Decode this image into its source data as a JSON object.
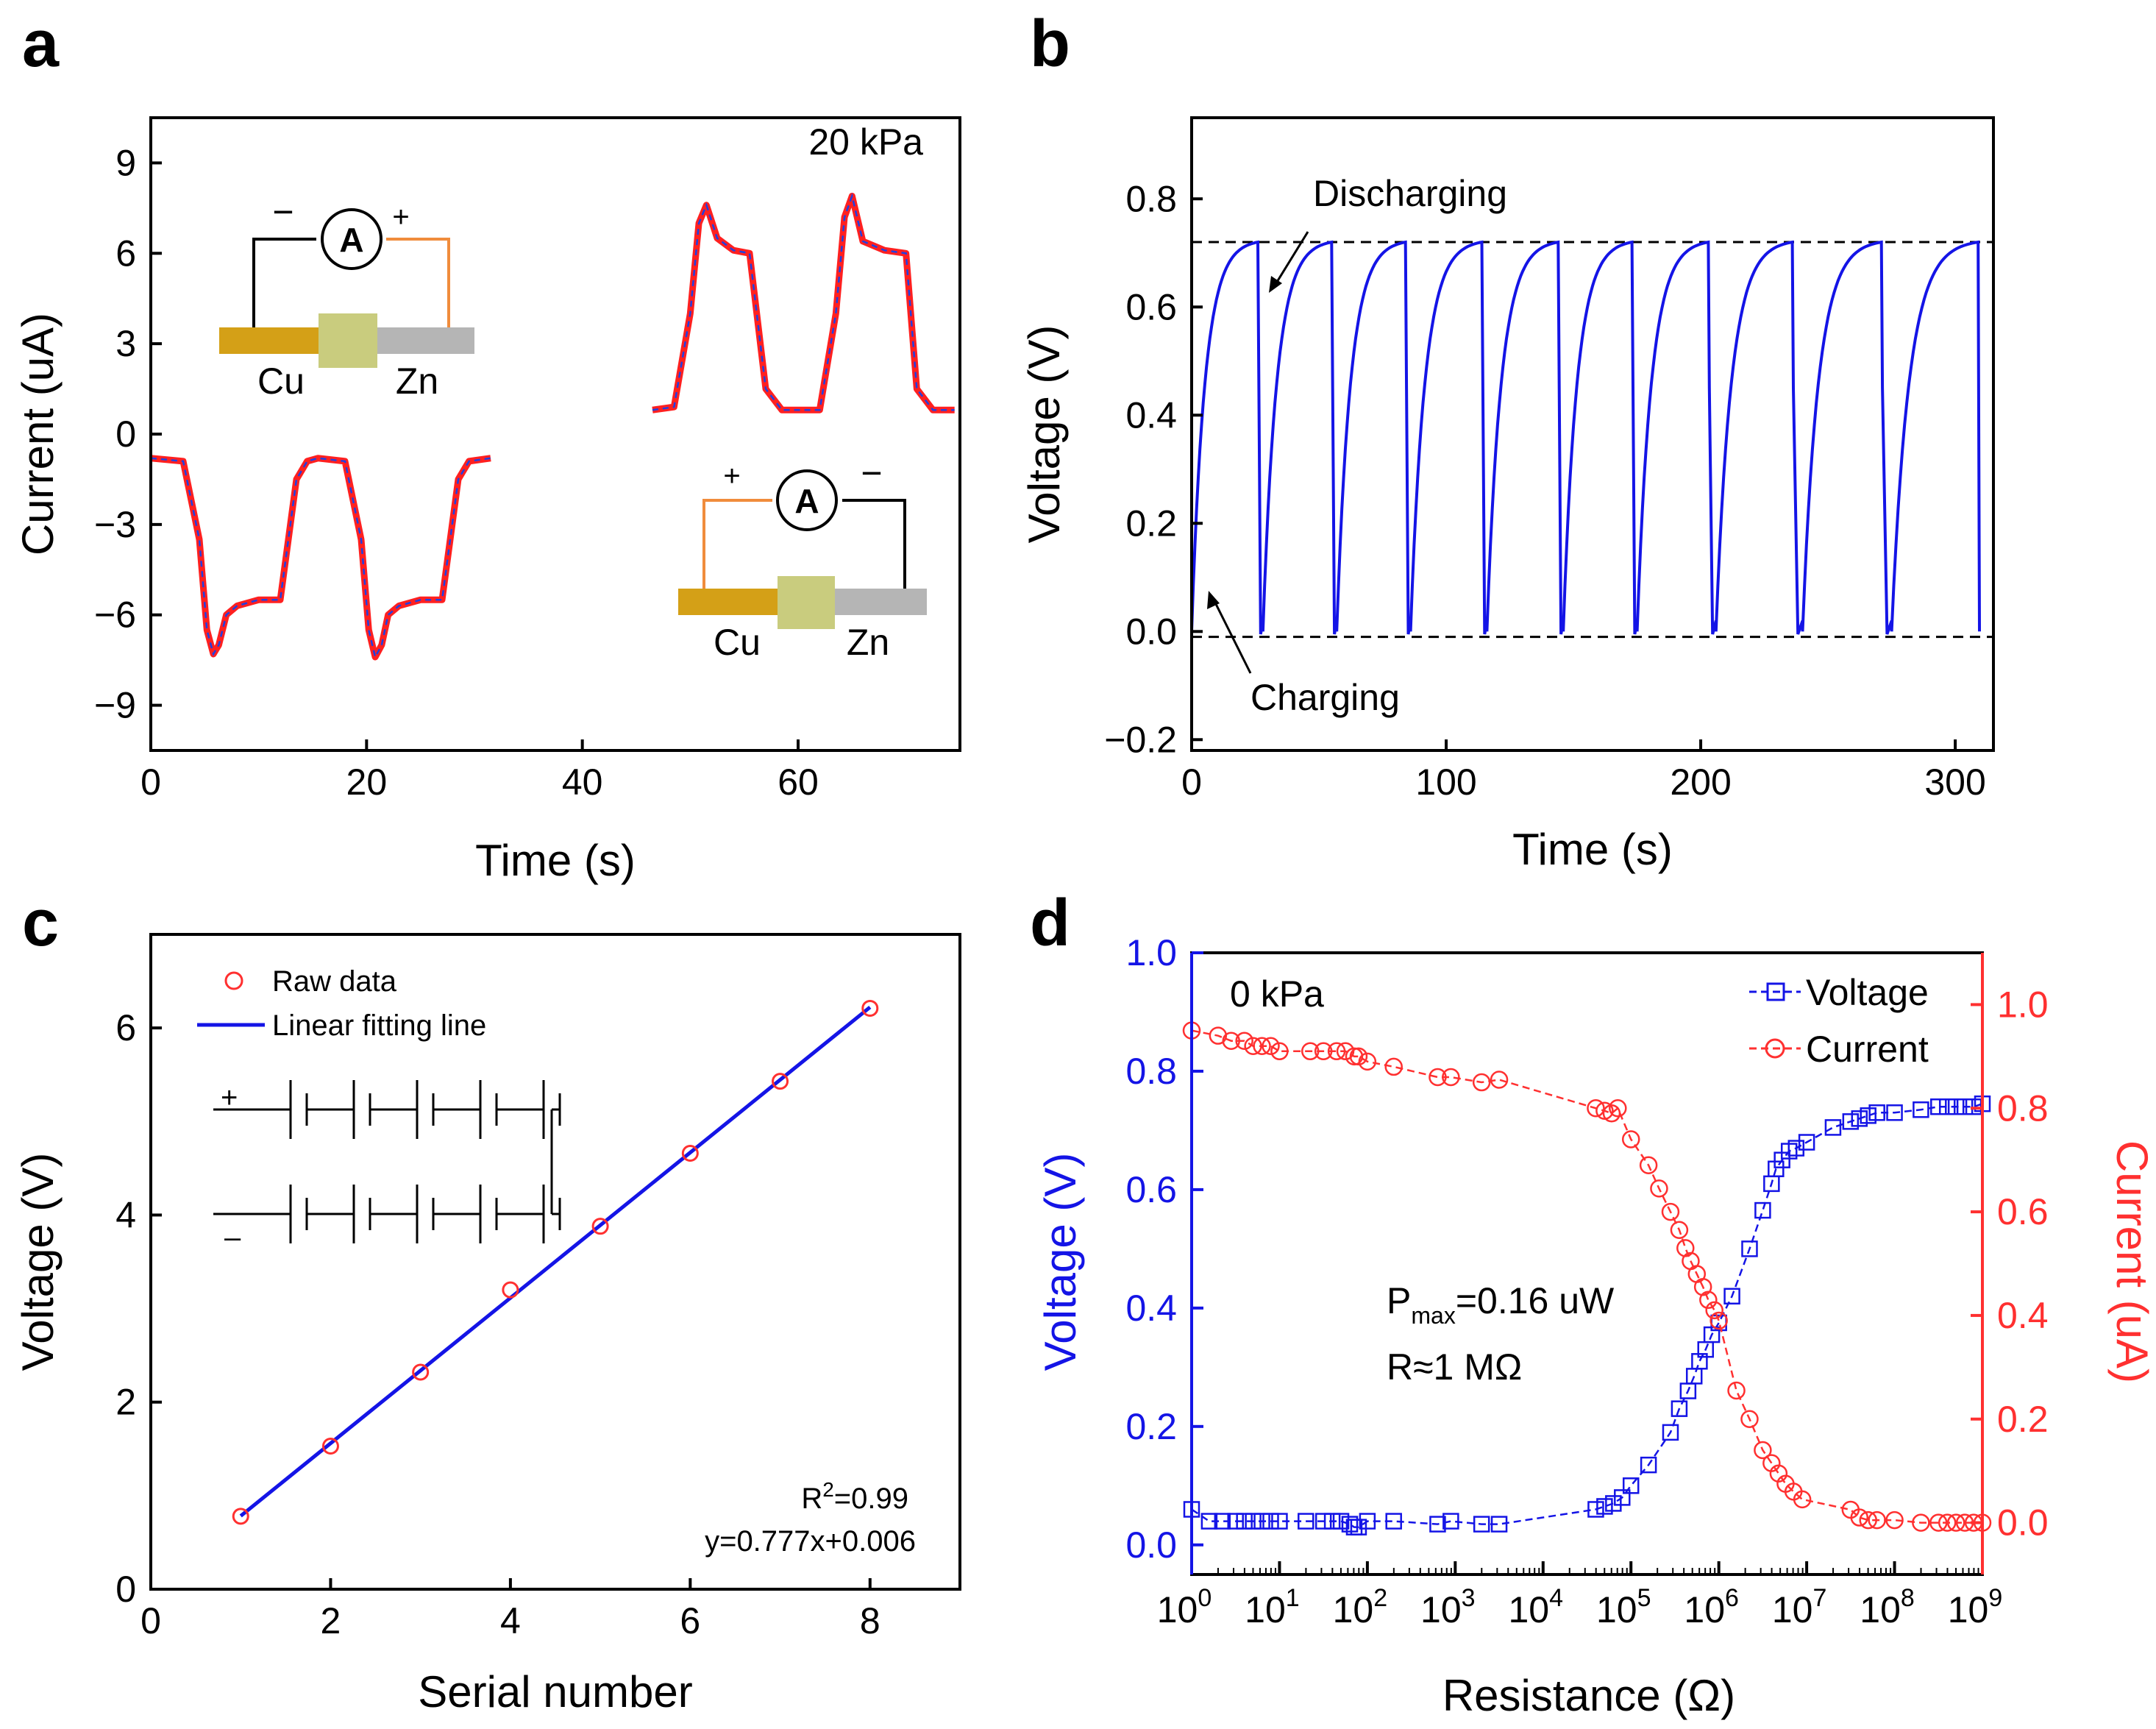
{
  "chart_data": [
    {
      "panel": "a",
      "type": "line",
      "title": "",
      "xlabel": "Time (s)",
      "ylabel": "Current (uA)",
      "xlim": [
        0,
        75
      ],
      "ylim": [
        -10.5,
        10.5
      ],
      "xticks": [
        0,
        20,
        40,
        60
      ],
      "yticks": [
        -9,
        -6,
        -3,
        0,
        3,
        6,
        9
      ],
      "ytick_labels": [
        "−9",
        "−6",
        "−3",
        "0",
        "3",
        "6",
        "9"
      ],
      "annotation": "20 kPa",
      "series": [
        {
          "name": "negative pulses",
          "color": "#ff2020",
          "x": [
            0,
            3,
            4.5,
            5.2,
            5.8,
            6.3,
            7,
            8,
            10,
            12,
            13.5,
            14.5,
            15.5,
            18,
            19.5,
            20.2,
            20.8,
            21.4,
            22,
            23,
            25,
            27,
            28.5,
            29.5,
            31.5
          ],
          "y": [
            -0.8,
            -0.9,
            -3.5,
            -6.5,
            -7.3,
            -7.0,
            -6.0,
            -5.7,
            -5.5,
            -5.5,
            -1.5,
            -0.9,
            -0.8,
            -0.9,
            -3.5,
            -6.5,
            -7.4,
            -7.0,
            -6.0,
            -5.7,
            -5.5,
            -5.5,
            -1.5,
            -0.9,
            -0.8
          ]
        },
        {
          "name": "positive pulses",
          "color": "#ff2020",
          "x": [
            46.5,
            48.5,
            50,
            50.8,
            51.5,
            52.5,
            54,
            55.5,
            57,
            58.5,
            62,
            63.5,
            64.3,
            65,
            66,
            68,
            70,
            71,
            72.5,
            74.5
          ],
          "y": [
            0.8,
            0.9,
            4.0,
            7.0,
            7.6,
            6.5,
            6.1,
            6.0,
            1.5,
            0.8,
            0.8,
            4.0,
            7.2,
            7.9,
            6.4,
            6.1,
            6.0,
            1.5,
            0.8,
            0.8
          ]
        }
      ],
      "inset_top": {
        "minus": "−",
        "plus": "+",
        "meter": "A",
        "left_metal": "Cu",
        "right_metal": "Zn"
      },
      "inset_bottom": {
        "plus": "+",
        "minus": "−",
        "meter": "A",
        "left_metal": "Cu",
        "right_metal": "Zn"
      }
    },
    {
      "panel": "b",
      "type": "line",
      "title": "",
      "xlabel": "Time (s)",
      "ylabel": "Voltage (V)",
      "xlim": [
        0,
        315
      ],
      "ylim": [
        -0.22,
        0.95
      ],
      "xticks": [
        0,
        100,
        200,
        300
      ],
      "yticks": [
        -0.2,
        0.0,
        0.2,
        0.4,
        0.6,
        0.8
      ],
      "ytick_labels": [
        "−0.2",
        "0.0",
        "0.2",
        "0.4",
        "0.6",
        "0.8"
      ],
      "reference_lines": [
        0.72,
        -0.01
      ],
      "cycle_starts": [
        0,
        28,
        57,
        86,
        116,
        146,
        175,
        206,
        240,
        275
      ],
      "cycle_ends": [
        26,
        55,
        84,
        114,
        144,
        173,
        203,
        236,
        271,
        309
      ],
      "plateau": 0.72,
      "annotations": [
        "Discharging",
        "Charging"
      ]
    },
    {
      "panel": "c",
      "type": "scatter",
      "title": "",
      "xlabel": "Serial number",
      "ylabel": "Voltage (V)",
      "xlim": [
        0,
        9
      ],
      "ylim": [
        0,
        7
      ],
      "xticks": [
        0,
        2,
        4,
        6,
        8
      ],
      "yticks": [
        0,
        2,
        4,
        6
      ],
      "x": [
        1,
        2,
        3,
        4,
        5,
        6,
        7,
        8
      ],
      "y": [
        0.78,
        1.53,
        2.32,
        3.2,
        3.88,
        4.66,
        5.43,
        6.21
      ],
      "fit": {
        "slope": 0.777,
        "intercept": 0.006
      },
      "legend": [
        "Raw data",
        "Linear fitting line"
      ],
      "r2_label": "R",
      "r2_sup": "2",
      "r2_value": "=0.99",
      "equation": "y=0.777x+0.006",
      "inset_plus": "+",
      "inset_minus": "–"
    },
    {
      "panel": "d",
      "type": "scatter",
      "title": "",
      "xlabel": "Resistance (Ω)",
      "ylabel": "Voltage (V)",
      "ylabel_right": "Current (uA)",
      "xscale": "log",
      "xlim_exp": [
        0,
        9
      ],
      "ylim": [
        -0.05,
        1.0
      ],
      "ylim_right": [
        -0.1,
        1.1
      ],
      "yticks": [
        0.0,
        0.2,
        0.4,
        0.6,
        0.8,
        1.0
      ],
      "yticks_right": [
        0.0,
        0.2,
        0.4,
        0.6,
        0.8,
        1.0
      ],
      "xtick_base": "10",
      "xtick_exps": [
        "0",
        "1",
        "2",
        "3",
        "4",
        "5",
        "6",
        "7",
        "8",
        "9"
      ],
      "annotation": "0 kPa",
      "pmax_label": "P",
      "pmax_sub": "max",
      "pmax_value": "=0.16 uW",
      "r_label": "R≈1 MΩ",
      "series": [
        {
          "name": "Voltage",
          "color": "#1414e6",
          "log_x": [
            0,
            0.2,
            0.35,
            0.5,
            0.6,
            0.7,
            0.8,
            0.9,
            1.0,
            1.3,
            1.5,
            1.6,
            1.7,
            1.8,
            1.85,
            1.9,
            2.0,
            2.3,
            2.8,
            2.95,
            3.3,
            3.5,
            4.6,
            4.7,
            4.8,
            4.9,
            5.0,
            5.2,
            5.45,
            5.55,
            5.65,
            5.72,
            5.78,
            5.85,
            5.92,
            6.0,
            6.15,
            6.35,
            6.5,
            6.6,
            6.65,
            6.72,
            6.8,
            6.88,
            7.0,
            7.3,
            7.5,
            7.6,
            7.7,
            7.8,
            8.0,
            8.3,
            8.5,
            8.6,
            8.7,
            8.8,
            8.9,
            9.0
          ],
          "values": [
            0.06,
            0.04,
            0.04,
            0.04,
            0.04,
            0.04,
            0.04,
            0.04,
            0.04,
            0.04,
            0.04,
            0.04,
            0.04,
            0.035,
            0.03,
            0.03,
            0.04,
            0.04,
            0.035,
            0.04,
            0.035,
            0.035,
            0.06,
            0.065,
            0.07,
            0.08,
            0.1,
            0.135,
            0.19,
            0.23,
            0.26,
            0.285,
            0.31,
            0.33,
            0.355,
            0.375,
            0.42,
            0.5,
            0.565,
            0.61,
            0.635,
            0.65,
            0.665,
            0.67,
            0.68,
            0.705,
            0.715,
            0.72,
            0.725,
            0.73,
            0.73,
            0.735,
            0.74,
            0.74,
            0.74,
            0.74,
            0.74,
            0.745
          ]
        },
        {
          "name": "Current",
          "color": "#ff3030",
          "log_x": [
            0,
            0.3,
            0.45,
            0.6,
            0.7,
            0.8,
            0.9,
            1.0,
            1.35,
            1.5,
            1.65,
            1.75,
            1.85,
            1.9,
            2.0,
            2.3,
            2.8,
            2.95,
            3.3,
            3.5,
            4.6,
            4.7,
            4.78,
            4.85,
            5.0,
            5.2,
            5.32,
            5.45,
            5.55,
            5.62,
            5.68,
            5.75,
            5.82,
            5.88,
            5.95,
            6.0,
            6.2,
            6.35,
            6.5,
            6.6,
            6.68,
            6.76,
            6.85,
            6.95,
            7.5,
            7.6,
            7.7,
            7.8,
            8.0,
            8.3,
            8.5,
            8.6,
            8.7,
            8.8,
            8.9,
            9.0
          ],
          "values": [
            0.95,
            0.94,
            0.93,
            0.93,
            0.92,
            0.92,
            0.92,
            0.91,
            0.91,
            0.91,
            0.91,
            0.91,
            0.9,
            0.9,
            0.89,
            0.88,
            0.86,
            0.86,
            0.85,
            0.855,
            0.8,
            0.795,
            0.79,
            0.8,
            0.74,
            0.69,
            0.645,
            0.6,
            0.565,
            0.53,
            0.505,
            0.48,
            0.455,
            0.43,
            0.41,
            0.39,
            0.255,
            0.2,
            0.14,
            0.115,
            0.095,
            0.075,
            0.06,
            0.045,
            0.025,
            0.01,
            0.005,
            0.005,
            0.005,
            0.0,
            0.0,
            0.0,
            0.0,
            0.0,
            0.0,
            0.0
          ]
        }
      ]
    }
  ]
}
